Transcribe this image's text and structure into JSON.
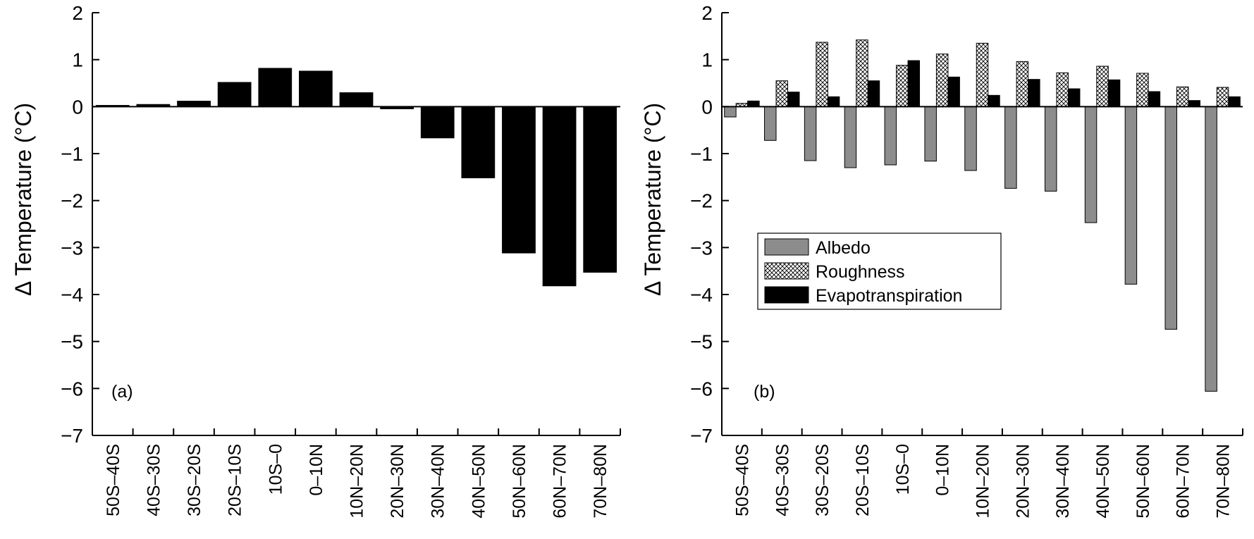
{
  "chart_data": [
    {
      "type": "bar",
      "panel_label": "(a)",
      "ylabel": "Δ Temperature (°C)",
      "ylim": [
        -7,
        2
      ],
      "yticks": [
        "2",
        "1",
        "0",
        "−1",
        "−2",
        "−3",
        "−4",
        "−5",
        "−6",
        "−7"
      ],
      "categories": [
        "50S–40S",
        "40S–30S",
        "30S–20S",
        "20S–10S",
        "10S–0",
        "0–10N",
        "10N–20N",
        "20N–30N",
        "30N–40N",
        "40N–50N",
        "50N–60N",
        "60N–70N",
        "70N–80N"
      ],
      "series": [
        {
          "values": [
            0.03,
            0.05,
            0.12,
            0.52,
            0.82,
            0.76,
            0.3,
            -0.05,
            -0.67,
            -1.52,
            -3.12,
            -3.82,
            -3.53
          ],
          "color": "#000000"
        }
      ]
    },
    {
      "type": "bar",
      "panel_label": "(b)",
      "ylabel": "Δ Temperature (°C)",
      "ylim": [
        -7,
        2
      ],
      "yticks": [
        "2",
        "1",
        "0",
        "−1",
        "−2",
        "−3",
        "−4",
        "−5",
        "−6",
        "−7"
      ],
      "categories": [
        "50S–40S",
        "40S–30S",
        "30S–20S",
        "20S–10S",
        "10S–0",
        "0–10N",
        "10N–20N",
        "20N–30N",
        "30N–40N",
        "40N–50N",
        "50N–60N",
        "60N–70N",
        "70N–80N"
      ],
      "legend_position": "center-left",
      "series": [
        {
          "name": "Albedo",
          "fill": "gray",
          "color": "#8c8c8c",
          "values": [
            -0.22,
            -0.72,
            -1.15,
            -1.3,
            -1.24,
            -1.16,
            -1.36,
            -1.74,
            -1.8,
            -2.47,
            -3.78,
            -4.74,
            -6.06
          ]
        },
        {
          "name": "Roughness",
          "fill": "crosshatch",
          "color": "#ffffff",
          "values": [
            0.07,
            0.55,
            1.37,
            1.42,
            0.88,
            1.12,
            1.35,
            0.96,
            0.72,
            0.86,
            0.71,
            0.42,
            0.41
          ]
        },
        {
          "name": "Evapotranspiration",
          "fill": "black",
          "color": "#000000",
          "values": [
            0.12,
            0.31,
            0.21,
            0.55,
            0.98,
            0.63,
            0.24,
            0.58,
            0.38,
            0.57,
            0.32,
            0.13,
            0.21
          ]
        }
      ]
    }
  ]
}
